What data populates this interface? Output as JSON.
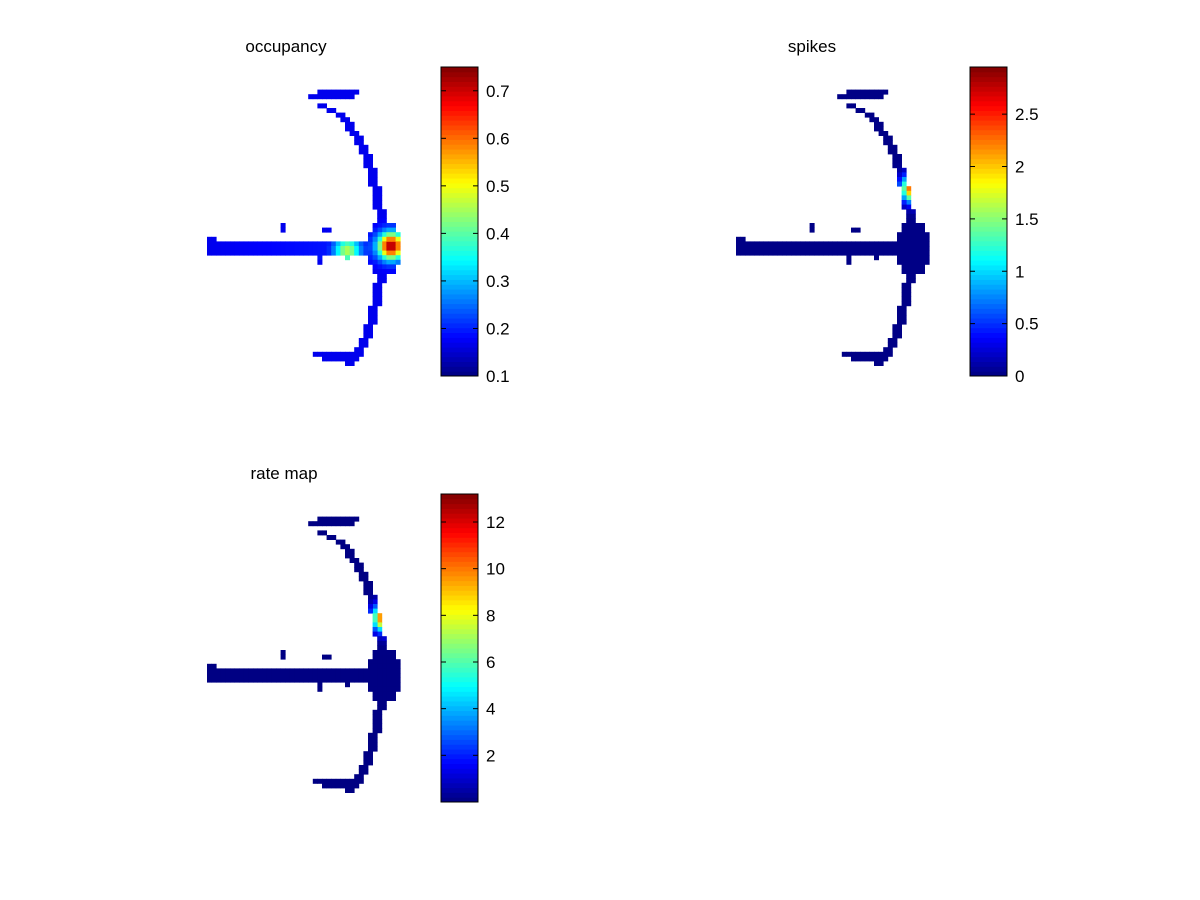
{
  "chart_data": [
    {
      "type": "heatmap",
      "title": "occupancy",
      "colorscale": "jet",
      "colorbar": {
        "range": [
          0.1,
          0.75
        ],
        "ticks": [
          0.1,
          0.2,
          0.3,
          0.4,
          0.5,
          0.6,
          0.7
        ],
        "tick_labels": [
          "0.1",
          "0.2",
          "0.3",
          "0.4",
          "0.5",
          "0.6",
          "0.7"
        ]
      },
      "hotspots": [
        {
          "grid_x": 39.5,
          "grid_y": 34.5,
          "value": 0.74
        },
        {
          "grid_x": 30,
          "grid_y": 35.5,
          "value": 0.46
        }
      ],
      "background_value": 0.17
    },
    {
      "type": "heatmap",
      "title": "spikes",
      "colorscale": "jet",
      "colorbar": {
        "range": [
          0,
          2.95
        ],
        "ticks": [
          0,
          0.5,
          1,
          1.5,
          2,
          2.5
        ],
        "tick_labels": [
          "0",
          "0.5",
          "1",
          "1.5",
          "2",
          "2.5"
        ]
      },
      "hotspots": [
        {
          "grid_x": 38.5,
          "grid_y": 22,
          "value": 2.95
        }
      ],
      "background_value": 0.02
    },
    {
      "type": "heatmap",
      "title": "rate map",
      "colorscale": "jet",
      "colorbar": {
        "range": [
          0,
          13.2
        ],
        "ticks": [
          2,
          4,
          6,
          8,
          10,
          12
        ],
        "tick_labels": [
          "2",
          "4",
          "6",
          "8",
          "10",
          "12"
        ]
      },
      "hotspots": [
        {
          "grid_x": 38.5,
          "grid_y": 22.5,
          "value": 13
        }
      ],
      "background_value": 0.05
    }
  ]
}
